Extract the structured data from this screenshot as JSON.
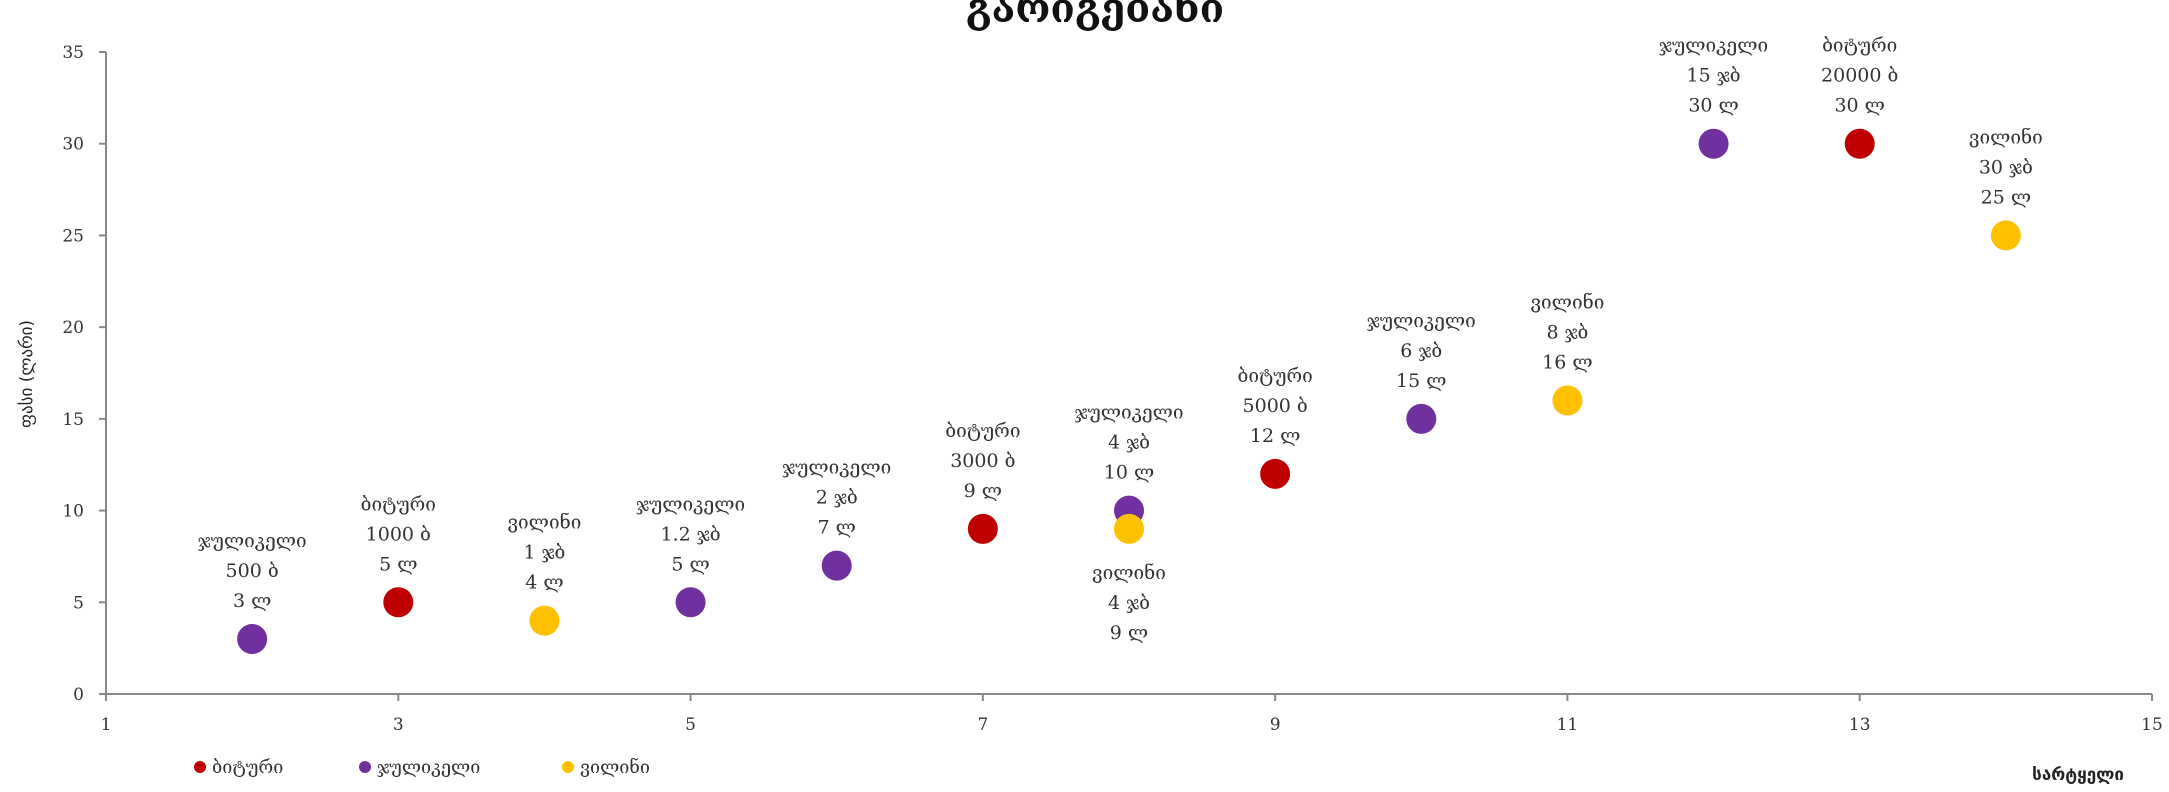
{
  "chart_data": {
    "type": "scatter",
    "title": "გარიგებანი",
    "xlabel": "სარტყელი",
    "ylabel": "ფასი (ლარი)",
    "xlim": [
      1,
      15
    ],
    "ylim": [
      0,
      35
    ],
    "xticks": [
      1,
      3,
      5,
      7,
      9,
      11,
      13,
      15
    ],
    "yticks": [
      0,
      5,
      10,
      15,
      20,
      25,
      30,
      35
    ],
    "grid": false,
    "legend_position": "bottom-left",
    "series": [
      {
        "name": "ბიტური",
        "color": "#c00000",
        "points": [
          {
            "x": 3,
            "y": 5,
            "label": [
              "ბიტური",
              "1000 ბ",
              "5 ლ"
            ]
          },
          {
            "x": 7,
            "y": 9,
            "label": [
              "ბიტური",
              "3000 ბ",
              "9 ლ"
            ]
          },
          {
            "x": 9,
            "y": 12,
            "label": [
              "ბიტური",
              "5000 ბ",
              "12 ლ"
            ]
          },
          {
            "x": 13,
            "y": 30,
            "label": [
              "ბიტური",
              "20000 ბ",
              "30 ლ"
            ]
          }
        ]
      },
      {
        "name": "ჯულიკელი",
        "color": "#7030a0",
        "points": [
          {
            "x": 2,
            "y": 3,
            "label": [
              "ჯულიკელი",
              "500 ბ",
              "3 ლ"
            ]
          },
          {
            "x": 5,
            "y": 5,
            "label": [
              "ჯულიკელი",
              "1.2 ჯბ",
              "5 ლ"
            ]
          },
          {
            "x": 6,
            "y": 7,
            "label": [
              "ჯულიკელი",
              "2 ჯბ",
              "7 ლ"
            ]
          },
          {
            "x": 8,
            "y": 10,
            "label": [
              "ჯულიკელი",
              "4 ჯბ",
              "10 ლ"
            ]
          },
          {
            "x": 10,
            "y": 15,
            "label": [
              "ჯულიკელი",
              "6 ჯბ",
              "15 ლ"
            ]
          },
          {
            "x": 12,
            "y": 30,
            "label": [
              "ჯულიკელი",
              "15 ჯბ",
              "30 ლ"
            ]
          }
        ]
      },
      {
        "name": "ვილინი",
        "color": "#ffc000",
        "points": [
          {
            "x": 4,
            "y": 4,
            "label": [
              "ვილინი",
              "1 ჯბ",
              "4 ლ"
            ]
          },
          {
            "x": 8,
            "y": 9,
            "label": [
              "ვილინი",
              "4 ჯბ",
              "9 ლ"
            ],
            "label_below": true
          },
          {
            "x": 11,
            "y": 16,
            "label": [
              "ვილინი",
              "8 ჯბ",
              "16 ლ"
            ]
          },
          {
            "x": 14,
            "y": 25,
            "label": [
              "ვილინი",
              "30 ჯბ",
              "25 ლ"
            ]
          }
        ]
      }
    ]
  }
}
